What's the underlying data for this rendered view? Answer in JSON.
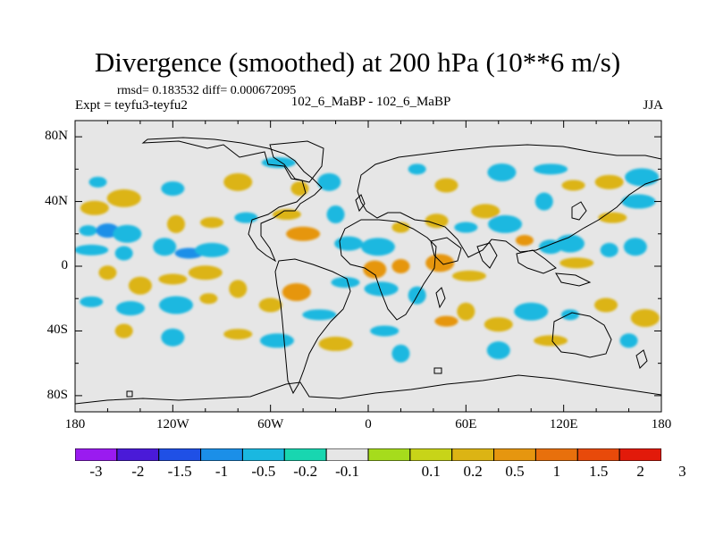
{
  "title": "Divergence (smoothed) at 200 hPa (10**6 m/s)",
  "stats_line": "rmsd= 0.183532  diff= 0.000672095",
  "expt_line": "Expt = teyfu3-teyfu2",
  "center_label": "102_6_MaBP - 102_6_MaBP",
  "season": "JJA",
  "colors": {
    "background": "#e6e6e6",
    "coastline": "#000000"
  },
  "chart_data": {
    "type": "heatmap",
    "title": "Divergence (smoothed) at 200 hPa (10**6 m/s)",
    "subtitle_left": "Expt = teyfu3-teyfu2",
    "subtitle_center": "102_6_MaBP - 102_6_MaBP",
    "subtitle_right": "JJA",
    "units": "10**6 m/s",
    "xlabel": "",
    "ylabel": "",
    "xlim": [
      -180,
      180
    ],
    "ylim": [
      -90,
      90
    ],
    "x_ticks": [
      {
        "value": -180,
        "label": "180"
      },
      {
        "value": -120,
        "label": "120W"
      },
      {
        "value": -60,
        "label": "60W"
      },
      {
        "value": 0,
        "label": "0"
      },
      {
        "value": 60,
        "label": "60E"
      },
      {
        "value": 120,
        "label": "120E"
      },
      {
        "value": 180,
        "label": "180"
      }
    ],
    "y_ticks": [
      {
        "value": 80,
        "label": "80N"
      },
      {
        "value": 40,
        "label": "40N"
      },
      {
        "value": 0,
        "label": "0"
      },
      {
        "value": -40,
        "label": "40S"
      },
      {
        "value": -80,
        "label": "80S"
      }
    ],
    "colorbar": {
      "labels": [
        "-3",
        "-2",
        "-1.5",
        "-1",
        "-0.5",
        "-0.2",
        "-0.1",
        "0.1",
        "0.2",
        "0.5",
        "1",
        "1.5",
        "2",
        "3"
      ],
      "colors": [
        "#9a1bf0",
        "#4a1ad8",
        "#1f50e6",
        "#1b8fe8",
        "#1ab8e0",
        "#18d6b0",
        "#e6e6e6",
        "#a6dc1c",
        "#c8d418",
        "#dcb414",
        "#e6960f",
        "#e8700c",
        "#e84a0a",
        "#e21a0a"
      ]
    },
    "cells": [
      {
        "lon": -172,
        "lat": 22,
        "v": -0.3
      },
      {
        "lon": -160,
        "lat": 22,
        "v": -0.5
      },
      {
        "lon": -148,
        "lat": 20,
        "v": -0.4
      },
      {
        "lon": -170,
        "lat": 10,
        "v": -0.3
      },
      {
        "lon": -150,
        "lat": 8,
        "v": -0.2
      },
      {
        "lon": -125,
        "lat": 12,
        "v": -0.3
      },
      {
        "lon": -110,
        "lat": 8,
        "v": -0.5
      },
      {
        "lon": -96,
        "lat": 10,
        "v": -0.4
      },
      {
        "lon": -118,
        "lat": 26,
        "v": 0.2
      },
      {
        "lon": -96,
        "lat": 27,
        "v": 0.2
      },
      {
        "lon": -168,
        "lat": 36,
        "v": 0.2
      },
      {
        "lon": -150,
        "lat": 42,
        "v": 0.2
      },
      {
        "lon": -166,
        "lat": 52,
        "v": -0.2
      },
      {
        "lon": -120,
        "lat": 48,
        "v": -0.2
      },
      {
        "lon": -80,
        "lat": 52,
        "v": 0.2
      },
      {
        "lon": -55,
        "lat": 64,
        "v": -0.2
      },
      {
        "lon": -42,
        "lat": 48,
        "v": 0.2
      },
      {
        "lon": -24,
        "lat": 52,
        "v": -0.2
      },
      {
        "lon": -50,
        "lat": 32,
        "v": 0.2
      },
      {
        "lon": -40,
        "lat": 20,
        "v": 0.5
      },
      {
        "lon": -20,
        "lat": 32,
        "v": -0.2
      },
      {
        "lon": -75,
        "lat": 30,
        "v": -0.2
      },
      {
        "lon": -12,
        "lat": 14,
        "v": -0.4
      },
      {
        "lon": 6,
        "lat": 12,
        "v": -0.3
      },
      {
        "lon": 20,
        "lat": 24,
        "v": 0.2
      },
      {
        "lon": 42,
        "lat": 28,
        "v": 0.3
      },
      {
        "lon": 44,
        "lat": 2,
        "v": 0.5
      },
      {
        "lon": 62,
        "lat": -6,
        "v": 0.4
      },
      {
        "lon": 20,
        "lat": 0,
        "v": 0.5
      },
      {
        "lon": 4,
        "lat": -2,
        "v": 0.6
      },
      {
        "lon": -14,
        "lat": -10,
        "v": -0.3
      },
      {
        "lon": 8,
        "lat": -14,
        "v": -0.3
      },
      {
        "lon": 30,
        "lat": -18,
        "v": -0.3
      },
      {
        "lon": 60,
        "lat": 24,
        "v": -0.2
      },
      {
        "lon": 72,
        "lat": 34,
        "v": 0.2
      },
      {
        "lon": 84,
        "lat": 26,
        "v": -0.2
      },
      {
        "lon": 96,
        "lat": 16,
        "v": 0.5
      },
      {
        "lon": 112,
        "lat": 12,
        "v": -0.2
      },
      {
        "lon": 124,
        "lat": 14,
        "v": -0.2
      },
      {
        "lon": 128,
        "lat": 2,
        "v": 0.3
      },
      {
        "lon": 148,
        "lat": 10,
        "v": -0.3
      },
      {
        "lon": 164,
        "lat": 12,
        "v": -0.2
      },
      {
        "lon": 150,
        "lat": 30,
        "v": 0.2
      },
      {
        "lon": 166,
        "lat": 40,
        "v": -0.2
      },
      {
        "lon": 108,
        "lat": 40,
        "v": -0.3
      },
      {
        "lon": 126,
        "lat": 50,
        "v": 0.2
      },
      {
        "lon": 148,
        "lat": 52,
        "v": 0.2
      },
      {
        "lon": 168,
        "lat": 55,
        "v": -0.2
      },
      {
        "lon": 30,
        "lat": 60,
        "v": -0.2
      },
      {
        "lon": 48,
        "lat": 50,
        "v": 0.2
      },
      {
        "lon": 82,
        "lat": 58,
        "v": -0.2
      },
      {
        "lon": 112,
        "lat": 60,
        "v": -0.2
      },
      {
        "lon": -160,
        "lat": -4,
        "v": 0.3
      },
      {
        "lon": -140,
        "lat": -12,
        "v": 0.4
      },
      {
        "lon": -120,
        "lat": -8,
        "v": 0.3
      },
      {
        "lon": -100,
        "lat": -4,
        "v": 0.2
      },
      {
        "lon": -80,
        "lat": -14,
        "v": 0.2
      },
      {
        "lon": -170,
        "lat": -22,
        "v": -0.2
      },
      {
        "lon": -146,
        "lat": -26,
        "v": -0.3
      },
      {
        "lon": -118,
        "lat": -24,
        "v": -0.2
      },
      {
        "lon": -98,
        "lat": -20,
        "v": 0.2
      },
      {
        "lon": -60,
        "lat": -24,
        "v": 0.3
      },
      {
        "lon": -44,
        "lat": -16,
        "v": 0.5
      },
      {
        "lon": -30,
        "lat": -30,
        "v": -0.2
      },
      {
        "lon": -150,
        "lat": -40,
        "v": 0.2
      },
      {
        "lon": -120,
        "lat": -44,
        "v": -0.2
      },
      {
        "lon": -80,
        "lat": -42,
        "v": 0.2
      },
      {
        "lon": -56,
        "lat": -46,
        "v": -0.2
      },
      {
        "lon": 60,
        "lat": -28,
        "v": 0.3
      },
      {
        "lon": 48,
        "lat": -34,
        "v": 0.5
      },
      {
        "lon": 80,
        "lat": -36,
        "v": 0.3
      },
      {
        "lon": 100,
        "lat": -28,
        "v": -0.3
      },
      {
        "lon": 124,
        "lat": -30,
        "v": -0.2
      },
      {
        "lon": 146,
        "lat": -24,
        "v": 0.3
      },
      {
        "lon": 170,
        "lat": -32,
        "v": 0.2
      },
      {
        "lon": 112,
        "lat": -46,
        "v": 0.2
      },
      {
        "lon": 160,
        "lat": -46,
        "v": -0.2
      },
      {
        "lon": 80,
        "lat": -52,
        "v": -0.2
      },
      {
        "lon": 10,
        "lat": -40,
        "v": -0.2
      },
      {
        "lon": -20,
        "lat": -48,
        "v": 0.2
      },
      {
        "lon": 20,
        "lat": -54,
        "v": -0.2
      }
    ]
  }
}
